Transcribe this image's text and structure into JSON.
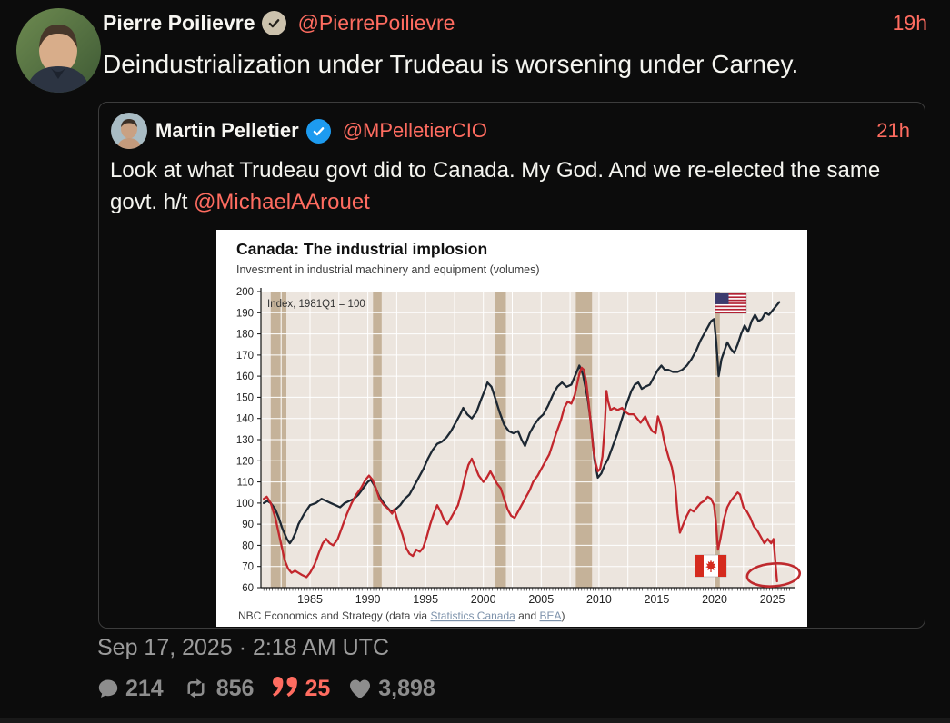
{
  "colors": {
    "accent": "#ff6c60",
    "background": "#0c0c0c",
    "text": "#f5f5f0",
    "muted_icon": "#8d8d8d",
    "timestamp": "#9c9c9c",
    "quote_border": "#3d3d3d",
    "verified_blue": "#1d9bf0",
    "verified_gray": "#ccc2ad"
  },
  "tweet": {
    "author": {
      "name": "Pierre Poilievre",
      "handle": "@PierrePoilievre",
      "verified": "gray-check"
    },
    "time": "19h",
    "text": "Deindustrialization under Trudeau is worsening under Carney.",
    "timestamp": "Sep 17, 2025 · 2:18 AM UTC",
    "stats": {
      "comments": "214",
      "retweets": "856",
      "quotes": "25",
      "likes": "3,898"
    }
  },
  "quote": {
    "author": {
      "name": "Martin Pelletier",
      "handle": "@MPelletierCIO",
      "verified": "blue-check"
    },
    "time": "21h",
    "text": "Look at what Trudeau govt did to Canada. My God. And we re-elected the same govt. h/t ",
    "mention": "@MichaelAArouet"
  },
  "chart_data": {
    "type": "line",
    "title": "Canada: The industrial implosion",
    "subtitle": "Investment in industrial machinery and equipment (volumes)",
    "annotation": "Index, 1981Q1 = 100",
    "source": {
      "prefix": "NBC Economics and Strategy (data via ",
      "link1": "Statistics Canada",
      "mid": " and ",
      "link2": "BEA",
      "suffix": ")"
    },
    "xlim": [
      1980.75,
      2027
    ],
    "ylim": [
      60,
      200
    ],
    "ytick_step": 10,
    "x_ticks": [
      1985,
      1990,
      1995,
      2000,
      2005,
      2010,
      2015,
      2020,
      2025
    ],
    "plot_bg": "#ece5de",
    "band_color": "#c5b299",
    "grid_color": "#ffffff",
    "recessions": [
      [
        1981.6,
        1982.95
      ],
      [
        1990.45,
        1991.2
      ],
      [
        2001.0,
        2001.95
      ],
      [
        2008.0,
        2009.4
      ],
      [
        2019.95,
        2020.45
      ]
    ],
    "circle_annotation": {
      "year": 2025.1,
      "value": 66
    },
    "series": [
      {
        "id": "us",
        "name": "United States",
        "legend": "us-flag",
        "color": "#1d2833",
        "points": [
          [
            1981,
            100
          ],
          [
            1981.3,
            101
          ],
          [
            1981.6,
            100
          ],
          [
            1982,
            97
          ],
          [
            1982.3,
            93
          ],
          [
            1982.6,
            88
          ],
          [
            1983,
            83
          ],
          [
            1983.25,
            81
          ],
          [
            1983.5,
            83
          ],
          [
            1983.75,
            86
          ],
          [
            1984,
            90
          ],
          [
            1984.5,
            95
          ],
          [
            1985,
            99
          ],
          [
            1985.5,
            100
          ],
          [
            1986,
            102
          ],
          [
            1986.4,
            101
          ],
          [
            1986.8,
            100
          ],
          [
            1987.2,
            99
          ],
          [
            1987.6,
            98
          ],
          [
            1988,
            100
          ],
          [
            1988.4,
            101
          ],
          [
            1988.8,
            102
          ],
          [
            1989.2,
            104
          ],
          [
            1989.6,
            107
          ],
          [
            1990,
            110
          ],
          [
            1990.25,
            111
          ],
          [
            1990.6,
            108
          ],
          [
            1991,
            103
          ],
          [
            1991.5,
            99
          ],
          [
            1992,
            96
          ],
          [
            1992.4,
            97
          ],
          [
            1992.8,
            99
          ],
          [
            1993.2,
            102
          ],
          [
            1993.6,
            104
          ],
          [
            1994,
            108
          ],
          [
            1994.4,
            112
          ],
          [
            1994.8,
            116
          ],
          [
            1995.2,
            121
          ],
          [
            1995.6,
            125
          ],
          [
            1996,
            128
          ],
          [
            1996.4,
            129
          ],
          [
            1996.8,
            131
          ],
          [
            1997.2,
            134
          ],
          [
            1997.6,
            138
          ],
          [
            1998,
            142
          ],
          [
            1998.25,
            145
          ],
          [
            1998.6,
            142
          ],
          [
            1999,
            140
          ],
          [
            1999.4,
            143
          ],
          [
            1999.8,
            149
          ],
          [
            2000.1,
            153
          ],
          [
            2000.35,
            157
          ],
          [
            2000.7,
            155
          ],
          [
            2001,
            150
          ],
          [
            2001.4,
            143
          ],
          [
            2001.8,
            137
          ],
          [
            2002.2,
            134
          ],
          [
            2002.6,
            133
          ],
          [
            2003,
            134
          ],
          [
            2003.3,
            130
          ],
          [
            2003.6,
            127
          ],
          [
            2004,
            133
          ],
          [
            2004.4,
            137
          ],
          [
            2004.8,
            140
          ],
          [
            2005.2,
            142
          ],
          [
            2005.6,
            146
          ],
          [
            2006,
            151
          ],
          [
            2006.4,
            155
          ],
          [
            2006.8,
            157
          ],
          [
            2007.2,
            155
          ],
          [
            2007.6,
            156
          ],
          [
            2008,
            161
          ],
          [
            2008.3,
            165
          ],
          [
            2008.6,
            161
          ],
          [
            2009,
            150
          ],
          [
            2009.3,
            138
          ],
          [
            2009.6,
            121
          ],
          [
            2009.9,
            112
          ],
          [
            2010.2,
            114
          ],
          [
            2010.5,
            118
          ],
          [
            2010.8,
            121
          ],
          [
            2011.2,
            127
          ],
          [
            2011.6,
            133
          ],
          [
            2012,
            140
          ],
          [
            2012.4,
            147
          ],
          [
            2012.8,
            153
          ],
          [
            2013.1,
            156
          ],
          [
            2013.4,
            157
          ],
          [
            2013.7,
            154
          ],
          [
            2014,
            155
          ],
          [
            2014.4,
            156
          ],
          [
            2014.8,
            160
          ],
          [
            2015.1,
            163
          ],
          [
            2015.4,
            165
          ],
          [
            2015.7,
            163
          ],
          [
            2016,
            163
          ],
          [
            2016.4,
            162
          ],
          [
            2016.8,
            162
          ],
          [
            2017.2,
            163
          ],
          [
            2017.6,
            165
          ],
          [
            2018,
            168
          ],
          [
            2018.4,
            172
          ],
          [
            2018.8,
            177
          ],
          [
            2019.1,
            180
          ],
          [
            2019.4,
            183
          ],
          [
            2019.7,
            186
          ],
          [
            2019.95,
            187
          ],
          [
            2020.15,
            176
          ],
          [
            2020.35,
            160
          ],
          [
            2020.6,
            168
          ],
          [
            2020.85,
            172
          ],
          [
            2021.1,
            176
          ],
          [
            2021.4,
            173
          ],
          [
            2021.7,
            171
          ],
          [
            2022,
            175
          ],
          [
            2022.3,
            180
          ],
          [
            2022.6,
            184
          ],
          [
            2022.9,
            181
          ],
          [
            2023.2,
            186
          ],
          [
            2023.5,
            189
          ],
          [
            2023.8,
            186
          ],
          [
            2024.1,
            187
          ],
          [
            2024.4,
            190
          ],
          [
            2024.7,
            189
          ],
          [
            2025,
            191
          ],
          [
            2025.3,
            193
          ],
          [
            2025.6,
            195
          ]
        ]
      },
      {
        "id": "canada",
        "name": "Canada",
        "legend": "canada-flag",
        "color": "#c2272d",
        "points": [
          [
            1981,
            102
          ],
          [
            1981.25,
            103
          ],
          [
            1981.6,
            100
          ],
          [
            1982,
            93
          ],
          [
            1982.4,
            83
          ],
          [
            1982.8,
            73
          ],
          [
            1983.1,
            69
          ],
          [
            1983.4,
            67
          ],
          [
            1983.7,
            68
          ],
          [
            1984,
            67
          ],
          [
            1984.3,
            66
          ],
          [
            1984.7,
            65
          ],
          [
            1985,
            67
          ],
          [
            1985.4,
            71
          ],
          [
            1985.8,
            77
          ],
          [
            1986.1,
            81
          ],
          [
            1986.4,
            83
          ],
          [
            1986.7,
            81
          ],
          [
            1987,
            80
          ],
          [
            1987.4,
            83
          ],
          [
            1987.8,
            89
          ],
          [
            1988.2,
            95
          ],
          [
            1988.6,
            100
          ],
          [
            1989,
            104
          ],
          [
            1989.4,
            107
          ],
          [
            1989.8,
            111
          ],
          [
            1990.1,
            113
          ],
          [
            1990.4,
            111
          ],
          [
            1990.7,
            107
          ],
          [
            1991,
            102
          ],
          [
            1991.4,
            99
          ],
          [
            1991.8,
            97
          ],
          [
            1992.1,
            95
          ],
          [
            1992.3,
            97
          ],
          [
            1992.6,
            91
          ],
          [
            1993,
            85
          ],
          [
            1993.3,
            79
          ],
          [
            1993.6,
            76
          ],
          [
            1993.9,
            75
          ],
          [
            1994.2,
            78
          ],
          [
            1994.5,
            77
          ],
          [
            1994.8,
            79
          ],
          [
            1995.1,
            84
          ],
          [
            1995.4,
            90
          ],
          [
            1995.7,
            95
          ],
          [
            1996,
            99
          ],
          [
            1996.3,
            96
          ],
          [
            1996.6,
            92
          ],
          [
            1996.9,
            90
          ],
          [
            1997.2,
            93
          ],
          [
            1997.5,
            96
          ],
          [
            1997.8,
            99
          ],
          [
            1998.1,
            105
          ],
          [
            1998.4,
            112
          ],
          [
            1998.7,
            118
          ],
          [
            1999,
            121
          ],
          [
            1999.3,
            117
          ],
          [
            1999.6,
            113
          ],
          [
            2000,
            110
          ],
          [
            2000.3,
            112
          ],
          [
            2000.6,
            115
          ],
          [
            2000.9,
            112
          ],
          [
            2001.2,
            109
          ],
          [
            2001.5,
            107
          ],
          [
            2001.8,
            102
          ],
          [
            2002.1,
            97
          ],
          [
            2002.4,
            94
          ],
          [
            2002.7,
            93
          ],
          [
            2003,
            96
          ],
          [
            2003.3,
            99
          ],
          [
            2003.6,
            102
          ],
          [
            2004,
            106
          ],
          [
            2004.3,
            110
          ],
          [
            2004.7,
            113
          ],
          [
            2005,
            116
          ],
          [
            2005.3,
            119
          ],
          [
            2005.7,
            123
          ],
          [
            2006,
            128
          ],
          [
            2006.3,
            133
          ],
          [
            2006.7,
            139
          ],
          [
            2007,
            145
          ],
          [
            2007.3,
            148
          ],
          [
            2007.6,
            147
          ],
          [
            2007.9,
            151
          ],
          [
            2008.1,
            156
          ],
          [
            2008.3,
            161
          ],
          [
            2008.5,
            164
          ],
          [
            2008.7,
            163
          ],
          [
            2008.9,
            157
          ],
          [
            2009.1,
            148
          ],
          [
            2009.3,
            137
          ],
          [
            2009.5,
            126
          ],
          [
            2009.7,
            119
          ],
          [
            2009.9,
            115
          ],
          [
            2010.1,
            116
          ],
          [
            2010.3,
            122
          ],
          [
            2010.5,
            136
          ],
          [
            2010.65,
            153
          ],
          [
            2010.8,
            148
          ],
          [
            2011,
            144
          ],
          [
            2011.3,
            145
          ],
          [
            2011.6,
            144
          ],
          [
            2012,
            145
          ],
          [
            2012.3,
            143
          ],
          [
            2012.6,
            142
          ],
          [
            2013,
            142
          ],
          [
            2013.3,
            140
          ],
          [
            2013.6,
            138
          ],
          [
            2014,
            141
          ],
          [
            2014.3,
            137
          ],
          [
            2014.6,
            134
          ],
          [
            2014.9,
            133
          ],
          [
            2015.1,
            141
          ],
          [
            2015.4,
            136
          ],
          [
            2015.7,
            128
          ],
          [
            2016,
            122
          ],
          [
            2016.3,
            117
          ],
          [
            2016.6,
            108
          ],
          [
            2016.8,
            95
          ],
          [
            2017,
            86
          ],
          [
            2017.3,
            90
          ],
          [
            2017.6,
            94
          ],
          [
            2017.9,
            97
          ],
          [
            2018.2,
            96
          ],
          [
            2018.5,
            98
          ],
          [
            2018.8,
            100
          ],
          [
            2019.1,
            101
          ],
          [
            2019.4,
            103
          ],
          [
            2019.7,
            102
          ],
          [
            2019.95,
            99
          ],
          [
            2020.1,
            92
          ],
          [
            2020.3,
            78
          ],
          [
            2020.5,
            83
          ],
          [
            2020.8,
            92
          ],
          [
            2021.1,
            98
          ],
          [
            2021.4,
            101
          ],
          [
            2021.7,
            103
          ],
          [
            2022,
            105
          ],
          [
            2022.2,
            104
          ],
          [
            2022.5,
            98
          ],
          [
            2022.8,
            96
          ],
          [
            2023.1,
            93
          ],
          [
            2023.4,
            89
          ],
          [
            2023.7,
            87
          ],
          [
            2024,
            84
          ],
          [
            2024.3,
            81
          ],
          [
            2024.6,
            83
          ],
          [
            2024.9,
            81
          ],
          [
            2025.1,
            83
          ],
          [
            2025.4,
            63
          ]
        ]
      }
    ]
  }
}
